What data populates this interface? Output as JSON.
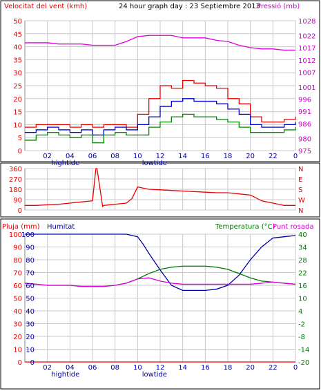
{
  "header": {
    "left_title": "Velocitat del vent (kmh)",
    "center_title": "24 hour graph day : 23 Septiembre 2013",
    "right_title": "Pressió (mb)"
  },
  "colors": {
    "wind_avg": "#0000cc",
    "wind_gust": "#ee0000",
    "wind_low": "#008800",
    "pressure": "#dd00dd",
    "direction": "#ee0000",
    "rain": "#ee0000",
    "humidity": "#0000aa",
    "temperature": "#007700",
    "dewpoint": "#dd00dd",
    "grid": "#c8c8c8",
    "axis_red": "#dd0000",
    "axis_magenta": "#cc00cc",
    "axis_blue": "#000099",
    "axis_green": "#007700"
  },
  "chart_data": [
    {
      "type": "line",
      "name": "wind-pressure",
      "xlabel": "",
      "x_ticks": [
        "02",
        "04",
        "06",
        "08",
        "10",
        "12",
        "14",
        "16",
        "18",
        "20",
        "22",
        "0"
      ],
      "x_annotations": [
        {
          "label": "hightide",
          "at": 3.6
        },
        {
          "label": "lowtide",
          "at": 11.5
        }
      ],
      "xlim": [
        0,
        24
      ],
      "y_left": {
        "label": "Velocitat del vent (kmh)",
        "ticks": [
          0,
          5,
          10,
          15,
          20,
          25,
          30,
          35,
          40,
          45,
          50
        ],
        "lim": [
          0,
          50
        ]
      },
      "y_right": {
        "label": "Pressió (mb)",
        "ticks": [
          975,
          980,
          986,
          991,
          996,
          1001,
          1007,
          1012,
          1017,
          1022,
          1028
        ],
        "lim": [
          975,
          1028
        ]
      },
      "series": [
        {
          "name": "gust",
          "axis": "left",
          "x": [
            0,
            1,
            2,
            3,
            4,
            5,
            6,
            7,
            8,
            9,
            10,
            11,
            12,
            13,
            14,
            15,
            16,
            17,
            18,
            19,
            20,
            21,
            22,
            23,
            24
          ],
          "values": [
            9,
            10,
            10,
            10,
            9,
            10,
            9,
            10,
            10,
            9,
            14,
            20,
            25,
            24,
            27,
            26,
            25,
            24,
            20,
            18,
            13,
            11,
            11,
            12,
            13
          ]
        },
        {
          "name": "average",
          "axis": "left",
          "x": [
            0,
            1,
            2,
            3,
            4,
            5,
            6,
            7,
            8,
            9,
            10,
            11,
            12,
            13,
            14,
            15,
            16,
            17,
            18,
            19,
            20,
            21,
            22,
            23,
            24
          ],
          "values": [
            7,
            8,
            9,
            8,
            7,
            8,
            6,
            8,
            9,
            8,
            10,
            13,
            17,
            19,
            20,
            19,
            19,
            18,
            16,
            14,
            10,
            9,
            9,
            10,
            11
          ]
        },
        {
          "name": "low",
          "axis": "left",
          "x": [
            0,
            1,
            2,
            3,
            4,
            5,
            6,
            7,
            8,
            9,
            10,
            11,
            12,
            13,
            14,
            15,
            16,
            17,
            18,
            19,
            20,
            21,
            22,
            23,
            24
          ],
          "values": [
            4,
            6,
            7,
            6,
            5,
            6,
            3,
            6,
            7,
            6,
            6,
            9,
            11,
            13,
            14,
            13,
            13,
            12,
            11,
            9,
            7,
            7,
            7,
            8,
            9
          ]
        },
        {
          "name": "pressure",
          "axis": "right",
          "x": [
            0,
            1,
            2,
            3,
            4,
            5,
            6,
            7,
            8,
            9,
            10,
            11,
            12,
            13,
            14,
            15,
            16,
            17,
            18,
            19,
            20,
            21,
            22,
            23,
            24
          ],
          "values": [
            1019,
            1019,
            1019,
            1018.5,
            1018.5,
            1018.5,
            1018,
            1018,
            1018,
            1019.5,
            1021.5,
            1022,
            1022,
            1022,
            1021,
            1021,
            1021,
            1020,
            1019.5,
            1018,
            1017,
            1016.5,
            1016.5,
            1016,
            1016
          ]
        }
      ]
    },
    {
      "type": "line",
      "name": "wind-direction",
      "x_ticks": [],
      "xlim": [
        0,
        24
      ],
      "y_left": {
        "ticks": [
          0,
          90,
          180,
          270,
          360
        ],
        "lim": [
          0,
          360
        ]
      },
      "y_right_labels": [
        "N",
        "W",
        "S",
        "E",
        "N"
      ],
      "series": [
        {
          "name": "direction",
          "x": [
            0,
            1,
            2,
            3,
            4,
            5,
            6,
            6.3,
            6.4,
            6.9,
            7,
            8,
            9,
            9.5,
            10,
            11,
            12,
            13,
            14,
            15,
            16,
            17,
            18,
            19,
            20,
            21,
            22,
            23,
            24
          ],
          "values": [
            40,
            40,
            45,
            50,
            60,
            70,
            80,
            360,
            360,
            30,
            40,
            50,
            60,
            100,
            200,
            180,
            175,
            170,
            165,
            160,
            155,
            150,
            150,
            140,
            130,
            80,
            60,
            40,
            40
          ]
        }
      ]
    },
    {
      "type": "line",
      "name": "rain-humidity-temperature",
      "x_ticks": [
        "02",
        "04",
        "06",
        "08",
        "10",
        "12",
        "14",
        "16",
        "18",
        "20",
        "22",
        "0"
      ],
      "x_annotations": [
        {
          "label": "hightide",
          "at": 3.6
        },
        {
          "label": "lowtide",
          "at": 11.5
        }
      ],
      "xlim": [
        0,
        24
      ],
      "legend": [
        "Pluja (mm)",
        "Humitat",
        "Temperatura (°C)",
        "Punt rosada"
      ],
      "y_rain": {
        "ticks": [
          0,
          10,
          20,
          30,
          40,
          50,
          60,
          70,
          80,
          90,
          100
        ],
        "lim": [
          0,
          100
        ]
      },
      "y_humidity": {
        "ticks": [
          0,
          10,
          20,
          30,
          40,
          50,
          60,
          70,
          80,
          90,
          100
        ],
        "lim": [
          0,
          100
        ]
      },
      "y_temperature": {
        "ticks": [
          -20,
          -14,
          -8,
          -2,
          4,
          10,
          16,
          22,
          28,
          34,
          40
        ],
        "lim": [
          -20,
          40
        ]
      },
      "series": [
        {
          "name": "rain",
          "axis": "rain",
          "x": [
            0,
            24
          ],
          "values": [
            0,
            0
          ]
        },
        {
          "name": "humidity",
          "axis": "humidity",
          "x": [
            0,
            1,
            2,
            3,
            4,
            5,
            6,
            7,
            8,
            9,
            10,
            10.5,
            11,
            12,
            13,
            14,
            15,
            16,
            17,
            18,
            19,
            20,
            21,
            22,
            23,
            24
          ],
          "values": [
            100,
            100,
            100,
            100,
            100,
            100,
            100,
            100,
            100,
            100,
            98,
            92,
            85,
            72,
            60,
            56,
            56,
            56,
            57,
            60,
            68,
            80,
            90,
            97,
            98,
            99
          ]
        },
        {
          "name": "temperature",
          "axis": "temperature",
          "x": [
            0,
            1,
            2,
            3,
            4,
            5,
            6,
            7,
            8,
            9,
            10,
            11,
            12,
            13,
            14,
            15,
            16,
            17,
            18,
            19,
            20,
            21,
            22,
            23,
            24
          ],
          "values": [
            17,
            16.5,
            16,
            16,
            16,
            15.5,
            15.5,
            15.5,
            16,
            17,
            19,
            21.5,
            23.5,
            24.5,
            25,
            25,
            25,
            24.5,
            23.5,
            21.5,
            19.5,
            18,
            17.5,
            17,
            16.5
          ]
        },
        {
          "name": "dewpoint",
          "axis": "temperature",
          "x": [
            0,
            1,
            2,
            3,
            4,
            5,
            6,
            7,
            8,
            9,
            10,
            11,
            12,
            13,
            14,
            15,
            16,
            17,
            18,
            19,
            20,
            21,
            22,
            23,
            24
          ],
          "values": [
            17,
            16.5,
            16,
            16,
            16,
            15.5,
            15.5,
            15.5,
            16,
            17,
            19,
            19.5,
            18,
            17,
            16.5,
            16.5,
            16.5,
            16.5,
            16.5,
            16.5,
            16.5,
            17,
            17.5,
            17,
            16.5
          ]
        }
      ]
    }
  ]
}
